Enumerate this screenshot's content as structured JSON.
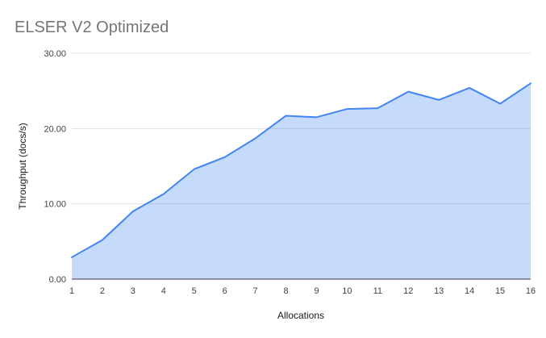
{
  "chart_data": {
    "type": "area",
    "title": "ELSER V2 Optimized",
    "xlabel": "Allocations",
    "ylabel": "Throughput (docs/s)",
    "x": [
      1,
      2,
      3,
      4,
      5,
      6,
      7,
      8,
      9,
      10,
      11,
      12,
      13,
      14,
      15,
      16
    ],
    "values": [
      2.9,
      5.2,
      9.0,
      11.3,
      14.6,
      16.2,
      18.7,
      21.7,
      21.5,
      22.6,
      22.7,
      24.9,
      23.8,
      25.4,
      23.3,
      26.0
    ],
    "ylim": [
      0,
      30
    ],
    "yticks": {
      "values": [
        0,
        10,
        20,
        30
      ],
      "labels": [
        "0.00",
        "10.00",
        "20.00",
        "30.00"
      ]
    },
    "xtick_labels": [
      "1",
      "2",
      "3",
      "4",
      "5",
      "6",
      "7",
      "8",
      "9",
      "10",
      "11",
      "12",
      "13",
      "14",
      "15",
      "16"
    ],
    "grid": "horizontal",
    "legend": "none",
    "colors": {
      "line": "#4285f4",
      "fill": "rgba(66,133,244,0.3)",
      "gridline": "#e3e3e3",
      "axis_line": "#3c3c3c",
      "title": "#757575",
      "tick_label": "#424242",
      "axis_title": "#1a1a1a",
      "background": "#ffffff"
    }
  }
}
